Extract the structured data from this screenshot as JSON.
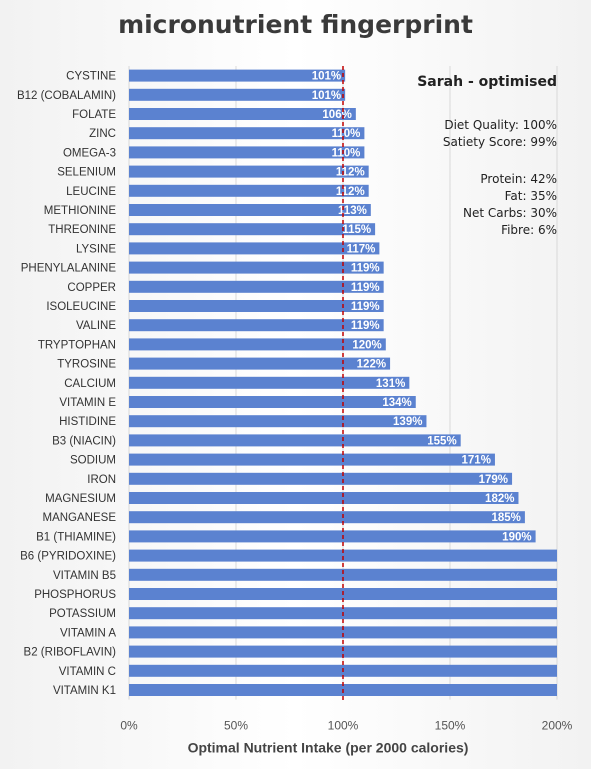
{
  "chart_data": {
    "type": "bar",
    "orientation": "horizontal",
    "title": "micronutrient fingerprint",
    "xlabel": "Optimal Nutrient Intake (per 2000 calories)",
    "xlim": [
      0,
      200
    ],
    "xticks": [
      "0%",
      "50%",
      "100%",
      "150%",
      "200%"
    ],
    "reference_line": {
      "value": 100,
      "style": "dashed",
      "color": "#c00000"
    },
    "bar_color": "#5b82d0",
    "grid": true,
    "categories": [
      "CYSTINE",
      "B12 (COBALAMIN)",
      "FOLATE",
      "ZINC",
      "OMEGA-3",
      "SELENIUM",
      "LEUCINE",
      "METHIONINE",
      "THREONINE",
      "LYSINE",
      "PHENYLALANINE",
      "COPPER",
      "ISOLEUCINE",
      "VALINE",
      "TRYPTOPHAN",
      "TYROSINE",
      "CALCIUM",
      "VITAMIN E",
      "HISTIDINE",
      "B3 (NIACIN)",
      "SODIUM",
      "IRON",
      "MAGNESIUM",
      "MANGANESE",
      "B1 (THIAMINE)",
      "B6 (PYRIDOXINE)",
      "VITAMIN B5",
      "PHOSPHORUS",
      "POTASSIUM",
      "VITAMIN A",
      "B2 (RIBOFLAVIN)",
      "VITAMIN C",
      "VITAMIN K1"
    ],
    "values": [
      101,
      101,
      106,
      110,
      110,
      112,
      112,
      113,
      115,
      117,
      119,
      119,
      119,
      119,
      120,
      122,
      131,
      134,
      139,
      155,
      171,
      179,
      182,
      185,
      190,
      200,
      200,
      200,
      200,
      200,
      200,
      200,
      200
    ],
    "data_labels": [
      "101%",
      "101%",
      "106%",
      "110%",
      "110%",
      "112%",
      "112%",
      "113%",
      "115%",
      "117%",
      "119%",
      "119%",
      "119%",
      "119%",
      "120%",
      "122%",
      "131%",
      "134%",
      "139%",
      "155%",
      "171%",
      "179%",
      "182%",
      "185%",
      "190%",
      "",
      "",
      "",
      "",
      "",
      "",
      "",
      ""
    ]
  },
  "annotation": {
    "heading": "Sarah - optimised",
    "diet_quality": "Diet Quality: 100%",
    "satiety_score": "Satiety Score: 99%",
    "protein": "Protein: 42%",
    "fat": "Fat: 35%",
    "net_carbs": "Net Carbs: 30%",
    "fibre": "Fibre: 6%"
  }
}
